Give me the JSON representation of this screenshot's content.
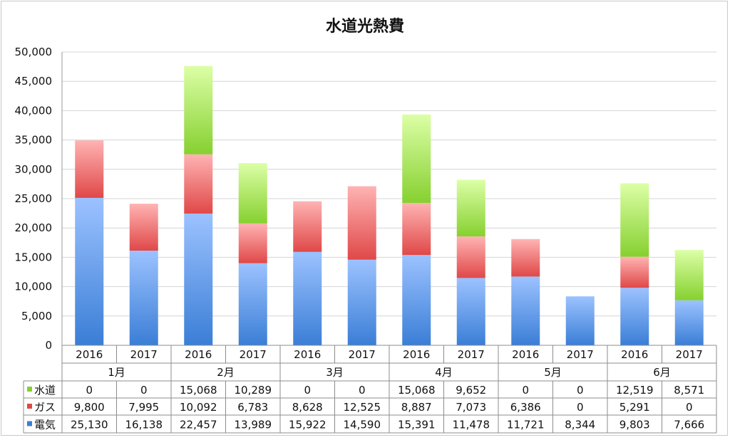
{
  "chart_data": {
    "type": "bar",
    "stacked": true,
    "title": "水道光熱費",
    "months": [
      "1月",
      "2月",
      "3月",
      "4月",
      "5月",
      "6月"
    ],
    "years": [
      "2016",
      "2017"
    ],
    "ylim": [
      0,
      50000
    ],
    "yticks": [
      "0",
      "5,000",
      "10,000",
      "15,000",
      "20,000",
      "25,000",
      "30,000",
      "35,000",
      "40,000",
      "45,000",
      "50,000"
    ],
    "grid": true,
    "legend_position": "data-table",
    "series": [
      {
        "name": "電気",
        "color_top": "#9cc2ff",
        "color_bottom": "#3a7ed6",
        "values": [
          25130,
          16138,
          22457,
          13989,
          15922,
          14590,
          15391,
          11478,
          11721,
          8344,
          9803,
          7666
        ],
        "labels": [
          "25,130",
          "16,138",
          "22,457",
          "13,989",
          "15,922",
          "14,590",
          "15,391",
          "11,478",
          "11,721",
          "8,344",
          "9,803",
          "7,666"
        ]
      },
      {
        "name": "ガス",
        "color_top": "#ffb3b3",
        "color_bottom": "#e04848",
        "values": [
          9800,
          7995,
          10092,
          6783,
          8628,
          12525,
          8887,
          7073,
          6386,
          0,
          5291,
          0
        ],
        "labels": [
          "9,800",
          "7,995",
          "10,092",
          "6,783",
          "8,628",
          "12,525",
          "8,887",
          "7,073",
          "6,386",
          "0",
          "5,291",
          "0"
        ]
      },
      {
        "name": "水道",
        "color_top": "#dcffa6",
        "color_bottom": "#86d030",
        "values": [
          0,
          0,
          15068,
          10289,
          0,
          0,
          15068,
          9652,
          0,
          0,
          12519,
          8571
        ],
        "labels": [
          "0",
          "0",
          "15,068",
          "10,289",
          "0",
          "0",
          "15,068",
          "9,652",
          "0",
          "0",
          "12,519",
          "8,571"
        ]
      }
    ]
  }
}
